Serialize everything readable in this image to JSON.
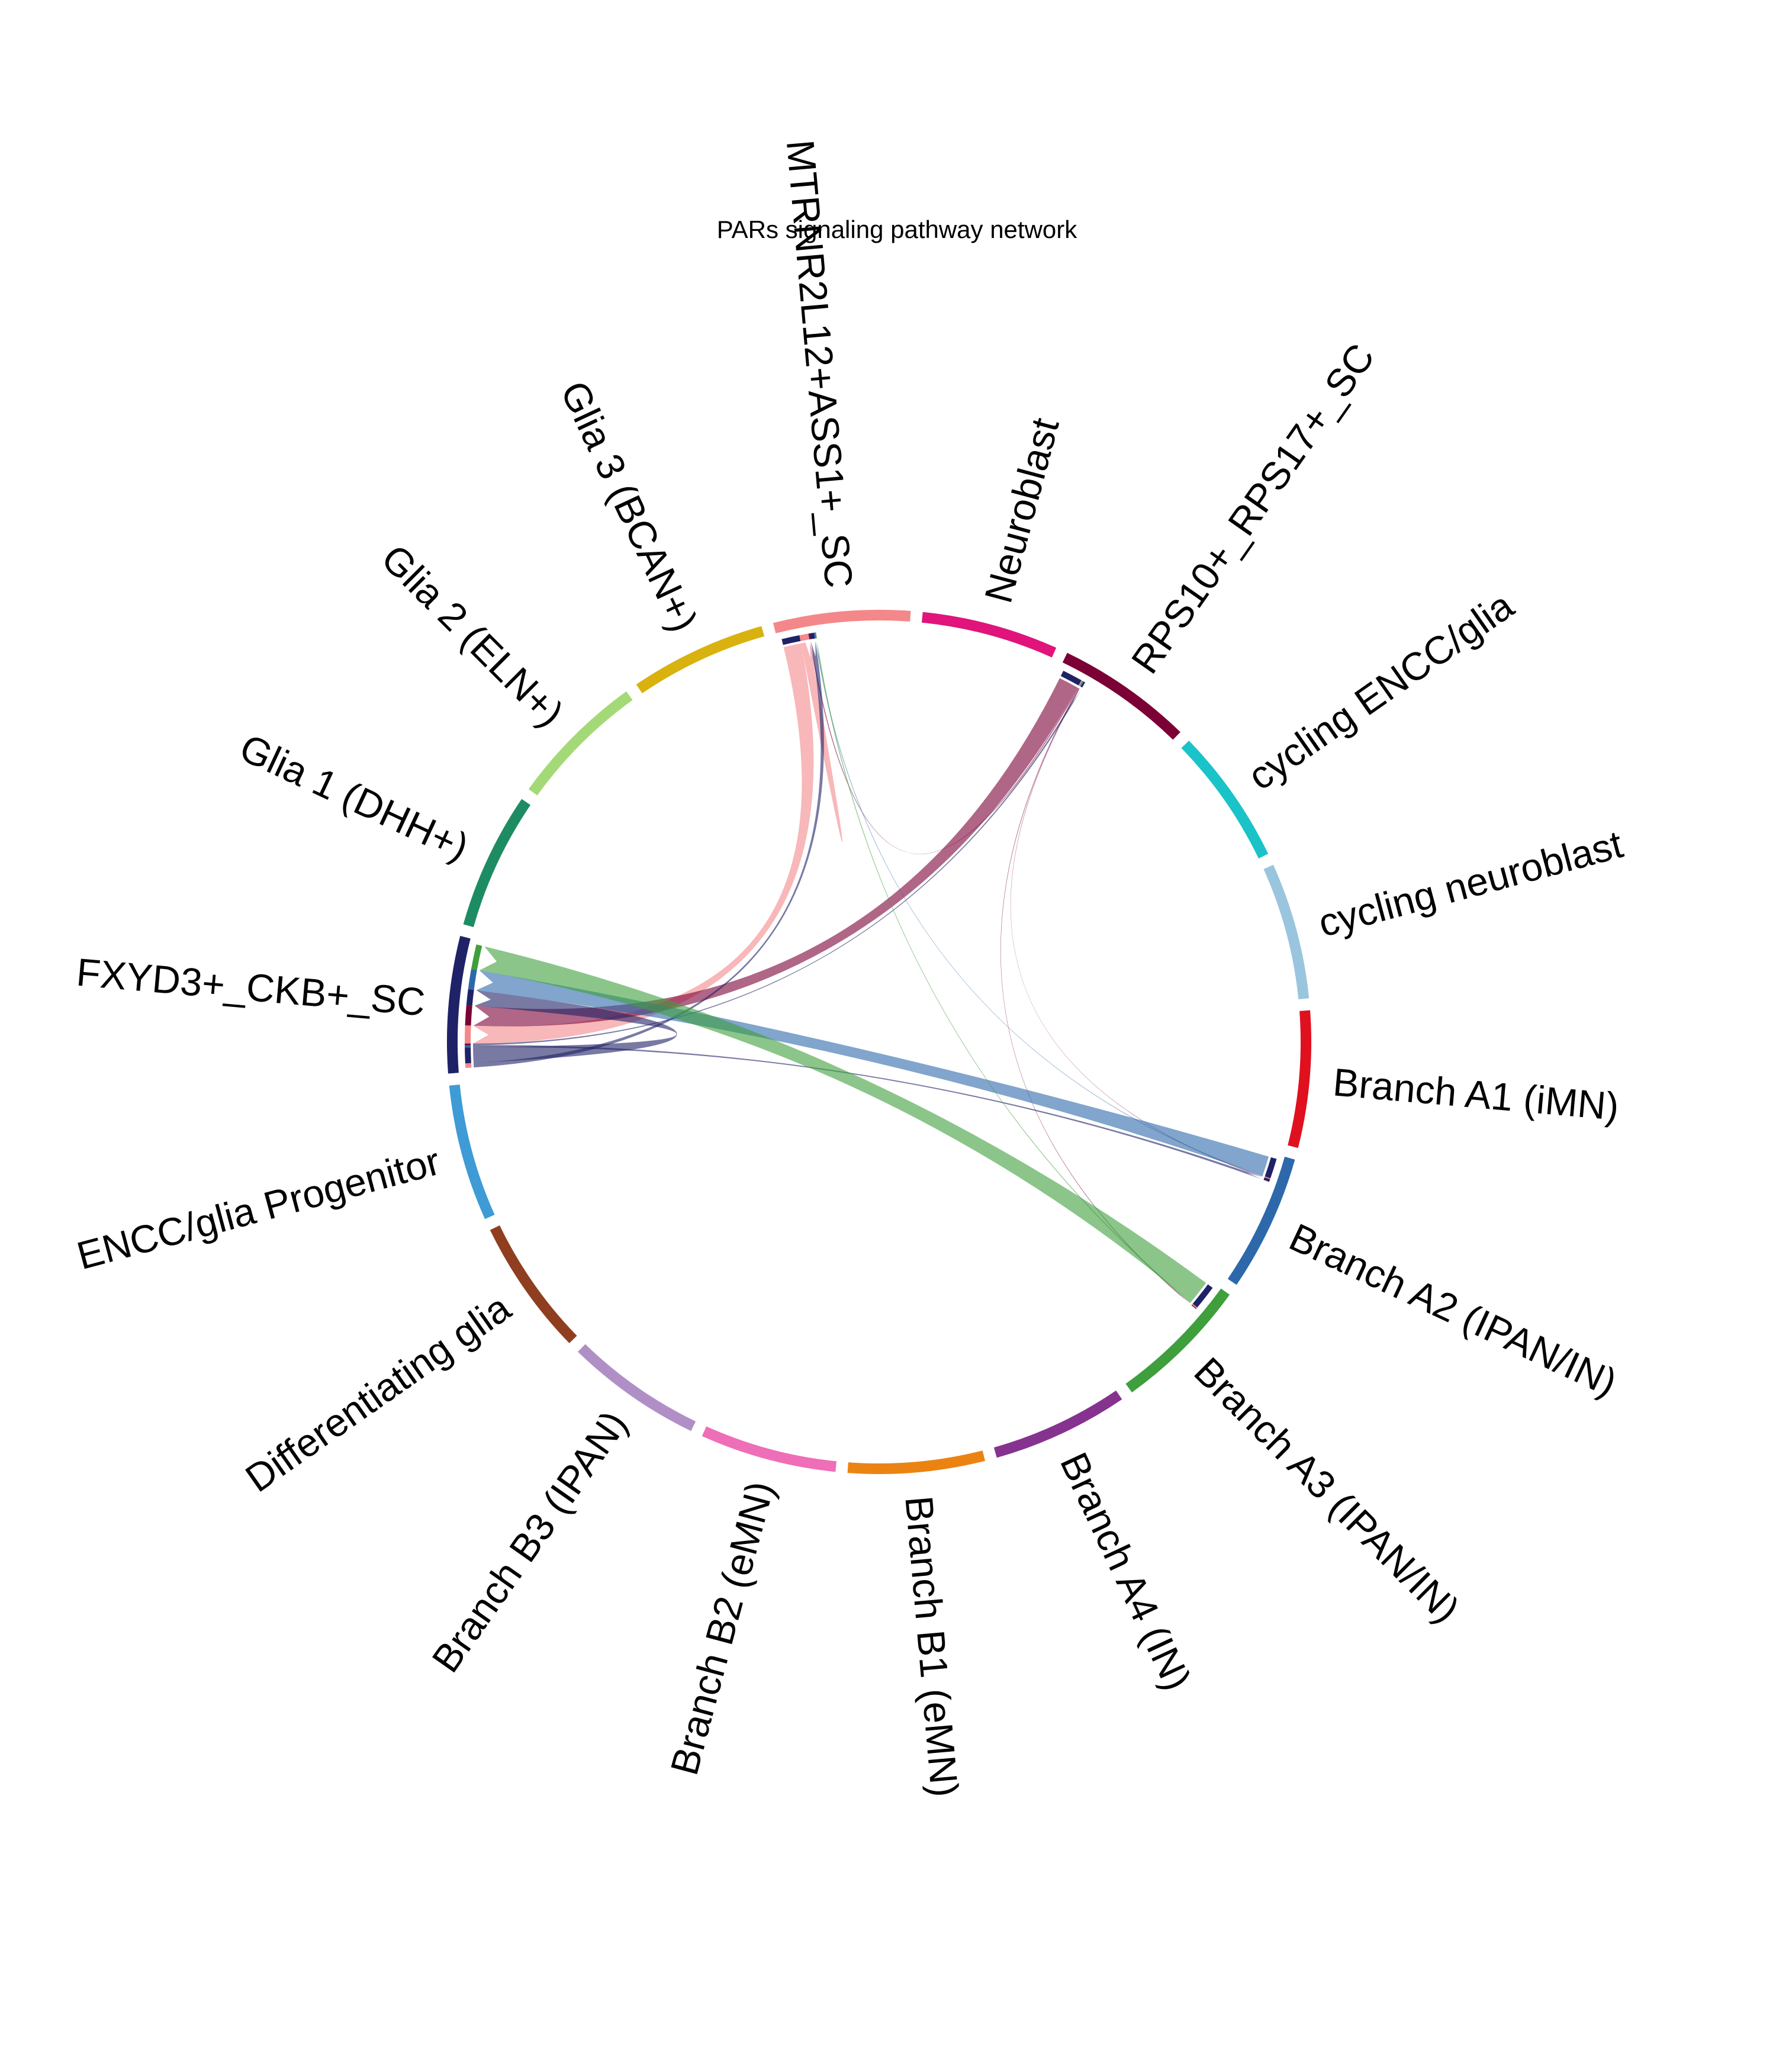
{
  "title": "PARs signaling pathway network",
  "sectors": [
    {
      "name": "MTRNR2L12+ASS1+_SC",
      "color": "#F4878A"
    },
    {
      "name": "Neuroblast",
      "color": "#E0147A"
    },
    {
      "name": "RPS10+_RPS17+_SC",
      "color": "#7B0035"
    },
    {
      "name": "cycling ENCC/glia",
      "color": "#1AC3C8"
    },
    {
      "name": "cycling neuroblast",
      "color": "#9AC5DE"
    },
    {
      "name": "Branch A1 (iMN)",
      "color": "#E0101E"
    },
    {
      "name": "Branch A2 (IPAN/IN)",
      "color": "#2D69AA"
    },
    {
      "name": "Branch A3 (IPAN/IN)",
      "color": "#3E9F3C"
    },
    {
      "name": "Branch A4 (IN)",
      "color": "#86338F"
    },
    {
      "name": "Branch B1 (eMN)",
      "color": "#EB8313"
    },
    {
      "name": "Branch B2 (eMN)",
      "color": "#EE6EB8"
    },
    {
      "name": "Branch B3 (IPAN)",
      "color": "#B08FC7"
    },
    {
      "name": "Differentiating glia",
      "color": "#8F3F1F"
    },
    {
      "name": "ENCC/glia Progenitor",
      "color": "#3E9BD6"
    },
    {
      "name": "FXYD3+_CKB+_SC",
      "color": "#1F2266"
    },
    {
      "name": "Glia 1 (DHH+)",
      "color": "#1E8C63"
    },
    {
      "name": "Glia 2 (ELN+)",
      "color": "#A3D977"
    },
    {
      "name": "Glia 3 (BCAN+)",
      "color": "#D9B20F"
    }
  ],
  "links": [
    {
      "source": "MTRNR2L12+ASS1+_SC",
      "target": "FXYD3+_CKB+_SC",
      "weight": 3.2
    },
    {
      "source": "MTRNR2L12+ASS1+_SC",
      "target": "MTRNR2L12+ASS1+_SC",
      "weight": 0.8
    },
    {
      "source": "RPS10+_RPS17+_SC",
      "target": "FXYD3+_CKB+_SC",
      "weight": 3.6
    },
    {
      "source": "RPS10+_RPS17+_SC",
      "target": "MTRNR2L12+ASS1+_SC",
      "weight": 0.2
    },
    {
      "source": "RPS10+_RPS17+_SC",
      "target": "Branch A3 (IPAN/IN)",
      "weight": 0.15
    },
    {
      "source": "RPS10+_RPS17+_SC",
      "target": "Branch A2 (IPAN/IN)",
      "weight": 0.1
    },
    {
      "source": "FXYD3+_CKB+_SC",
      "target": "MTRNR2L12+ASS1+_SC",
      "weight": 0.8
    },
    {
      "source": "FXYD3+_CKB+_SC",
      "target": "FXYD3+_CKB+_SC",
      "weight": 2.8
    },
    {
      "source": "FXYD3+_CKB+_SC",
      "target": "Branch A2 (IPAN/IN)",
      "weight": 0.4
    },
    {
      "source": "FXYD3+_CKB+_SC",
      "target": "RPS10+_RPS17+_SC",
      "weight": 0.3
    },
    {
      "source": "Branch A2 (IPAN/IN)",
      "target": "FXYD3+_CKB+_SC",
      "weight": 3.6
    },
    {
      "source": "Branch A2 (IPAN/IN)",
      "target": "MTRNR2L12+ASS1+_SC",
      "weight": 0.15
    },
    {
      "source": "Branch A3 (IPAN/IN)",
      "target": "FXYD3+_CKB+_SC",
      "weight": 4.4
    },
    {
      "source": "Branch A3 (IPAN/IN)",
      "target": "MTRNR2L12+ASS1+_SC",
      "weight": 0.2
    }
  ]
}
